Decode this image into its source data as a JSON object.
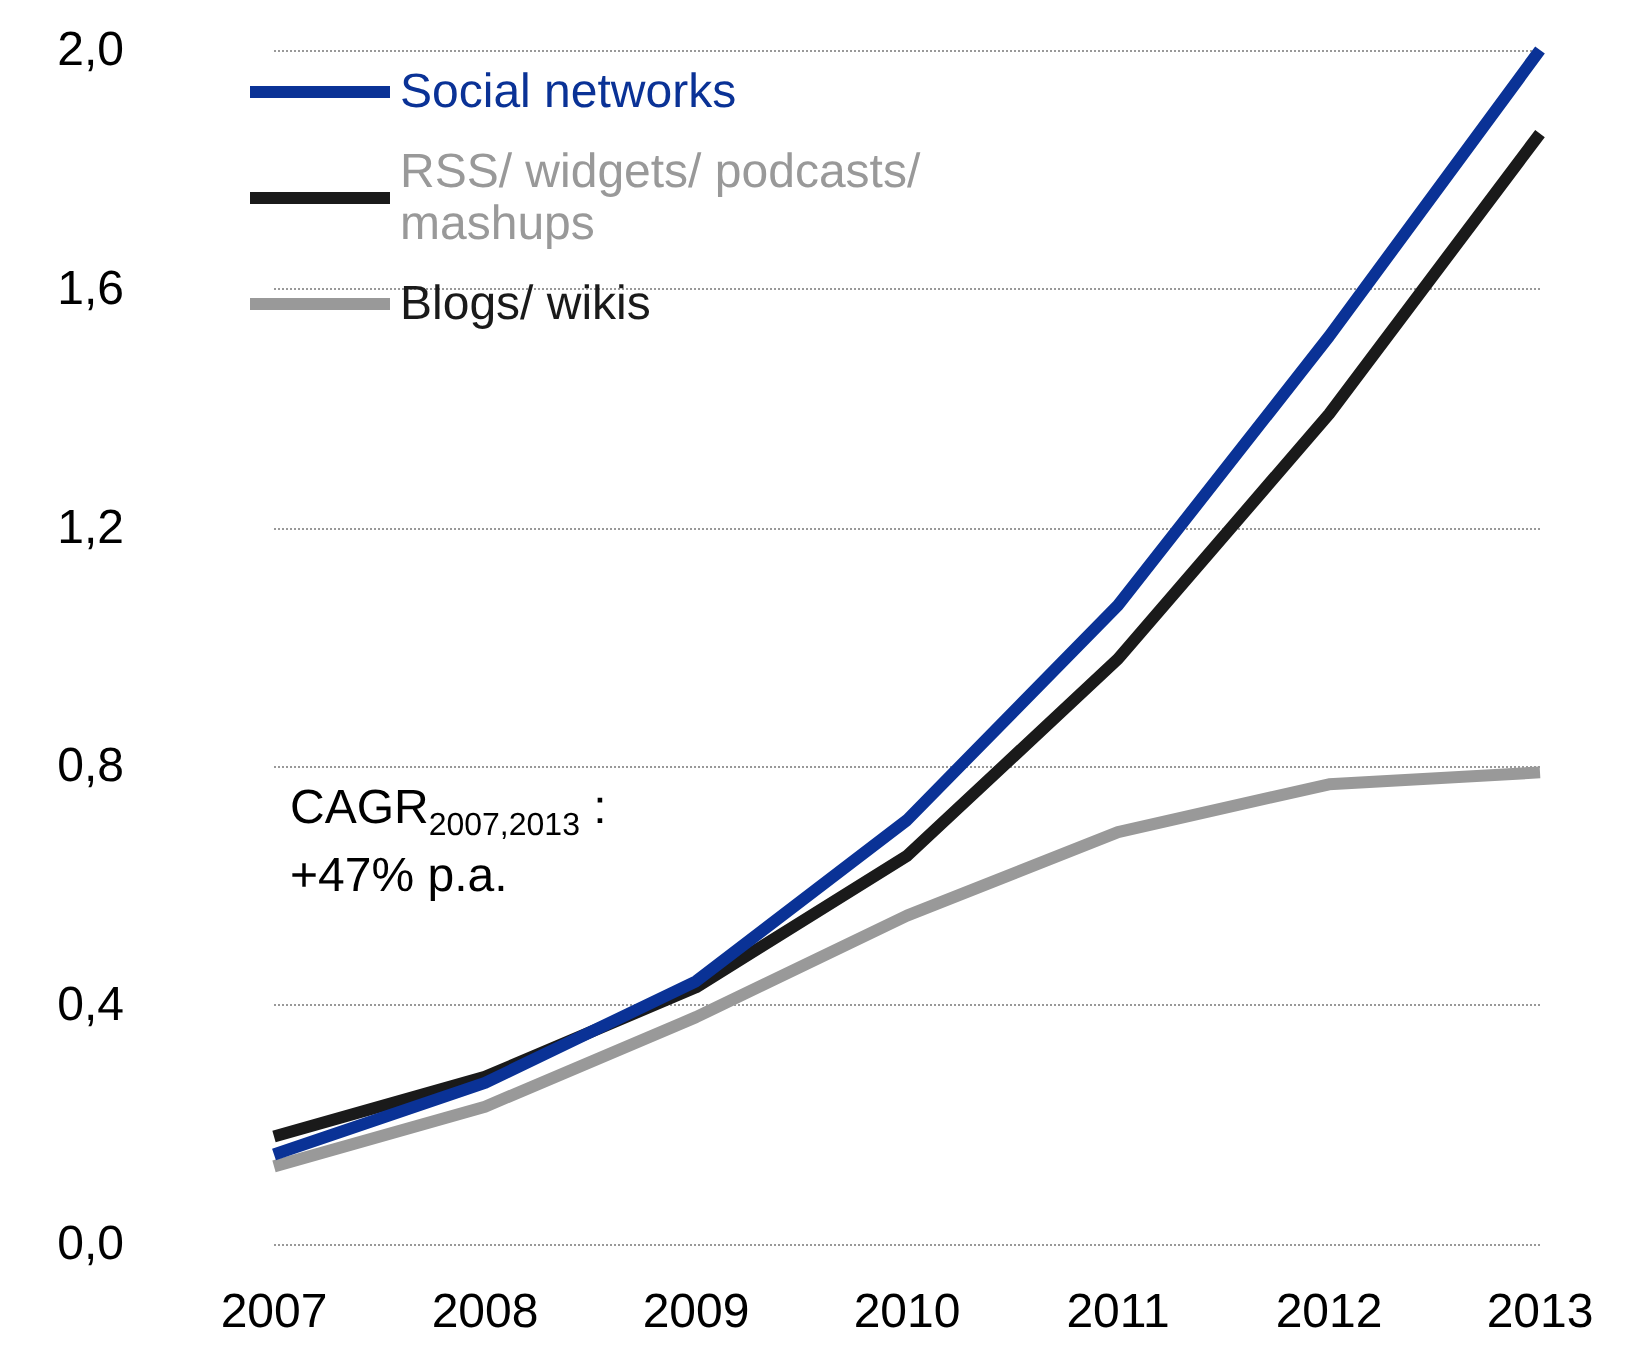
{
  "chart_data": {
    "type": "line",
    "categories": [
      "2007",
      "2008",
      "2009",
      "2010",
      "2011",
      "2012",
      "2013"
    ],
    "series": [
      {
        "name": "Social networks",
        "color": "#0a3296",
        "values": [
          0.15,
          0.27,
          0.44,
          0.71,
          1.07,
          1.52,
          2.0
        ]
      },
      {
        "name": "RSS/ widgets/ podcasts/ mashups",
        "color": "#1a1a1a",
        "values": [
          0.18,
          0.28,
          0.43,
          0.65,
          0.98,
          1.39,
          1.86
        ]
      },
      {
        "name": "Blogs/ wikis",
        "color": "#999999",
        "values": [
          0.13,
          0.23,
          0.38,
          0.55,
          0.69,
          0.77,
          0.79
        ]
      }
    ],
    "ylim": [
      0,
      2.0
    ],
    "yticks": [
      {
        "value": 0,
        "label": "0,0"
      },
      {
        "value": 0.4,
        "label": "0,4"
      },
      {
        "value": 0.8,
        "label": "0,8"
      },
      {
        "value": 1.2,
        "label": "1,2"
      },
      {
        "value": 1.6,
        "label": "1,6"
      },
      {
        "value": 2.0,
        "label": "2,0"
      }
    ],
    "grid": "y",
    "legend": "top left",
    "marker": "none",
    "line_style": "solid",
    "annotations": [
      "CAGR$_{2007,2013}$ :\n+47% p.a."
    ]
  }
}
